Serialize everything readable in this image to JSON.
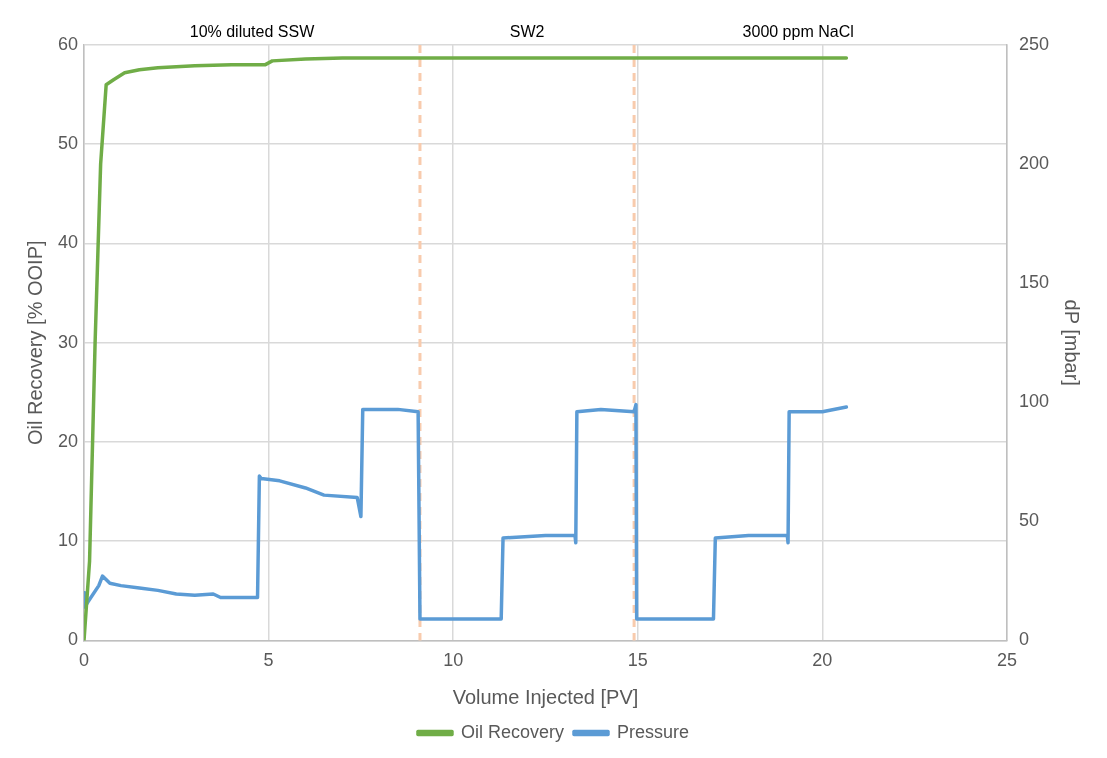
{
  "chart_data": {
    "type": "line",
    "xlabel": "Volume Injected [PV]",
    "ylabel": "Oil Recovery [% OOIP]",
    "y2label": "dP [mbar]",
    "xlim": [
      0,
      25
    ],
    "xticks": [
      0,
      5,
      10,
      15,
      20,
      25
    ],
    "ylim": [
      0,
      60
    ],
    "yticks": [
      0,
      10,
      20,
      30,
      40,
      50,
      60
    ],
    "y2lim": [
      0,
      250
    ],
    "y2ticks": [
      0,
      50,
      100,
      150,
      200,
      250
    ],
    "grid": true,
    "legend": "bottom",
    "marker": "none",
    "line_style": "solid",
    "series": [
      {
        "name": "Oil Recovery",
        "color": "#70ad47",
        "x": [
          0,
          0.15,
          0.3,
          0.45,
          0.6,
          0.8,
          1.1,
          1.5,
          2,
          3,
          4,
          4.9,
          5.1,
          6,
          7,
          20.65
        ],
        "values": [
          0,
          8,
          30,
          48,
          56,
          56.5,
          57.2,
          57.5,
          57.7,
          57.9,
          58,
          58,
          58.4,
          58.6,
          58.7,
          58.7
        ]
      },
      {
        "name": "Pressure",
        "color": "#5b9bd5",
        "axis": "y2",
        "x": [
          0,
          0.02,
          0.1,
          0.4,
          0.5,
          0.7,
          1,
          1.5,
          2,
          2.5,
          3,
          3.5,
          3.7,
          4.7,
          4.75,
          4.8,
          5.3,
          6,
          6.5,
          7.4,
          7.5,
          7.55,
          8.5,
          9.05,
          9.1,
          10,
          11.3,
          11.35,
          12.5,
          13.3,
          13.32,
          13.35,
          14,
          14.9,
          14.95,
          14.97,
          16,
          17.05,
          17.1,
          18,
          19.05,
          19.07,
          19.1,
          20,
          20.65
        ],
        "values": [
          20,
          14,
          16,
          23,
          27,
          24,
          23,
          22,
          21,
          19.5,
          19,
          19.5,
          18,
          18,
          69,
          68,
          67,
          64,
          61,
          60,
          52,
          97,
          97,
          96,
          9,
          9,
          9,
          43,
          44,
          44,
          41,
          96,
          97,
          96,
          99,
          9,
          9,
          9,
          43,
          44,
          44,
          41,
          96,
          96,
          98
        ]
      }
    ],
    "ref_lines": [
      {
        "axis": "x",
        "value": 9.1,
        "color": "#f8cbad",
        "line_style": "dashed"
      },
      {
        "axis": "x",
        "value": 14.9,
        "color": "#f8cbad",
        "line_style": "dashed"
      }
    ],
    "annotations": [
      "10% diluted SSW",
      "SW2",
      "3000 ppm NaCl"
    ]
  }
}
